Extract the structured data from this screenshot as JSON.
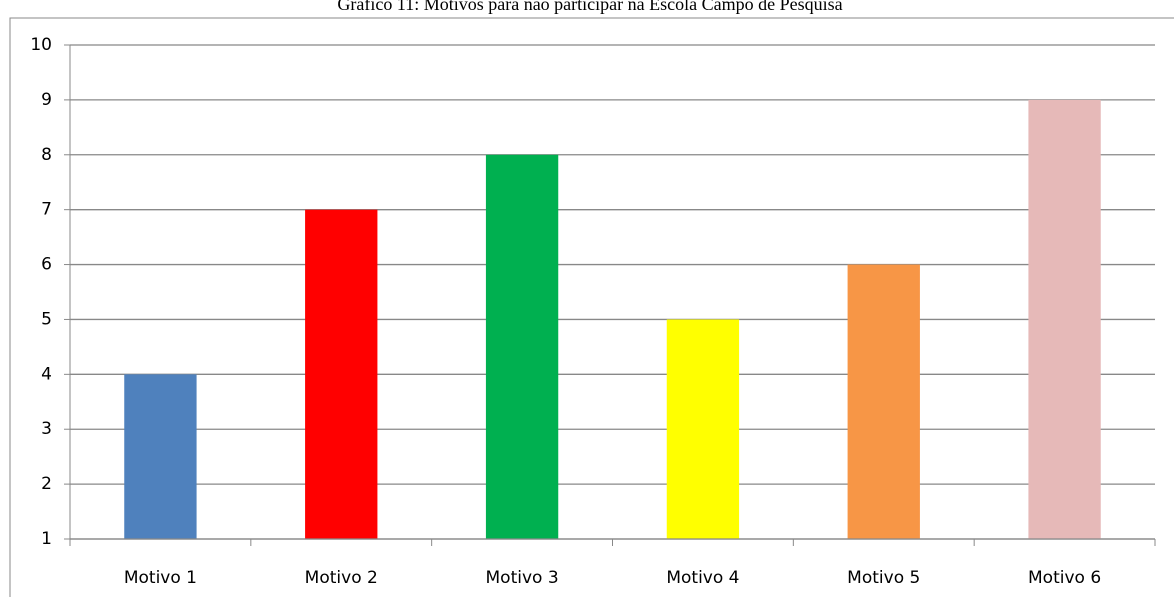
{
  "chart_data": {
    "type": "bar",
    "title": "Gráfico 11: Motivos para não participar na Escola Campo de Pesquisa",
    "categories": [
      "Motivo 1",
      "Motivo 2",
      "Motivo 3",
      "Motivo 4",
      "Motivo 5",
      "Motivo 6"
    ],
    "values": [
      4,
      7,
      8,
      5,
      6,
      9
    ],
    "colors": [
      "#4f81bd",
      "#ff0000",
      "#00b050",
      "#ffff00",
      "#f79646",
      "#e6b9b8"
    ],
    "ylim": [
      1,
      10
    ],
    "yticks": [
      1,
      2,
      3,
      4,
      5,
      6,
      7,
      8,
      9,
      10
    ],
    "grid": true
  }
}
